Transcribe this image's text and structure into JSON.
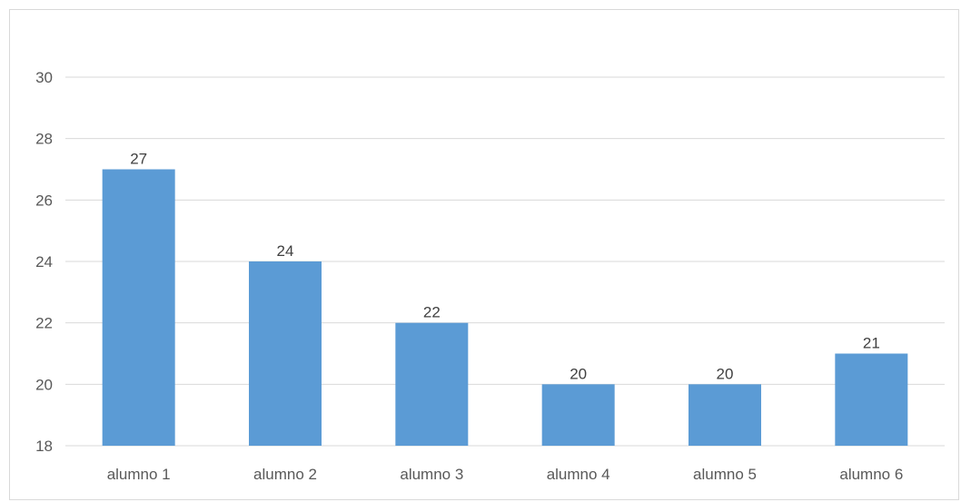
{
  "chart_data": {
    "type": "bar",
    "categories": [
      "alumno 1",
      "alumno 2",
      "alumno 3",
      "alumno 4",
      "alumno 5",
      "alumno 6"
    ],
    "values": [
      27,
      24,
      22,
      20,
      20,
      21
    ],
    "data_labels": [
      "27",
      "24",
      "22",
      "20",
      "20",
      "21"
    ],
    "yticks": [
      "18",
      "20",
      "22",
      "24",
      "26",
      "28",
      "30"
    ],
    "ylim": [
      18,
      30
    ],
    "title": "",
    "xlabel": "",
    "ylabel": "",
    "grid": true,
    "legend": "none",
    "bar_color": "#5b9bd5"
  }
}
